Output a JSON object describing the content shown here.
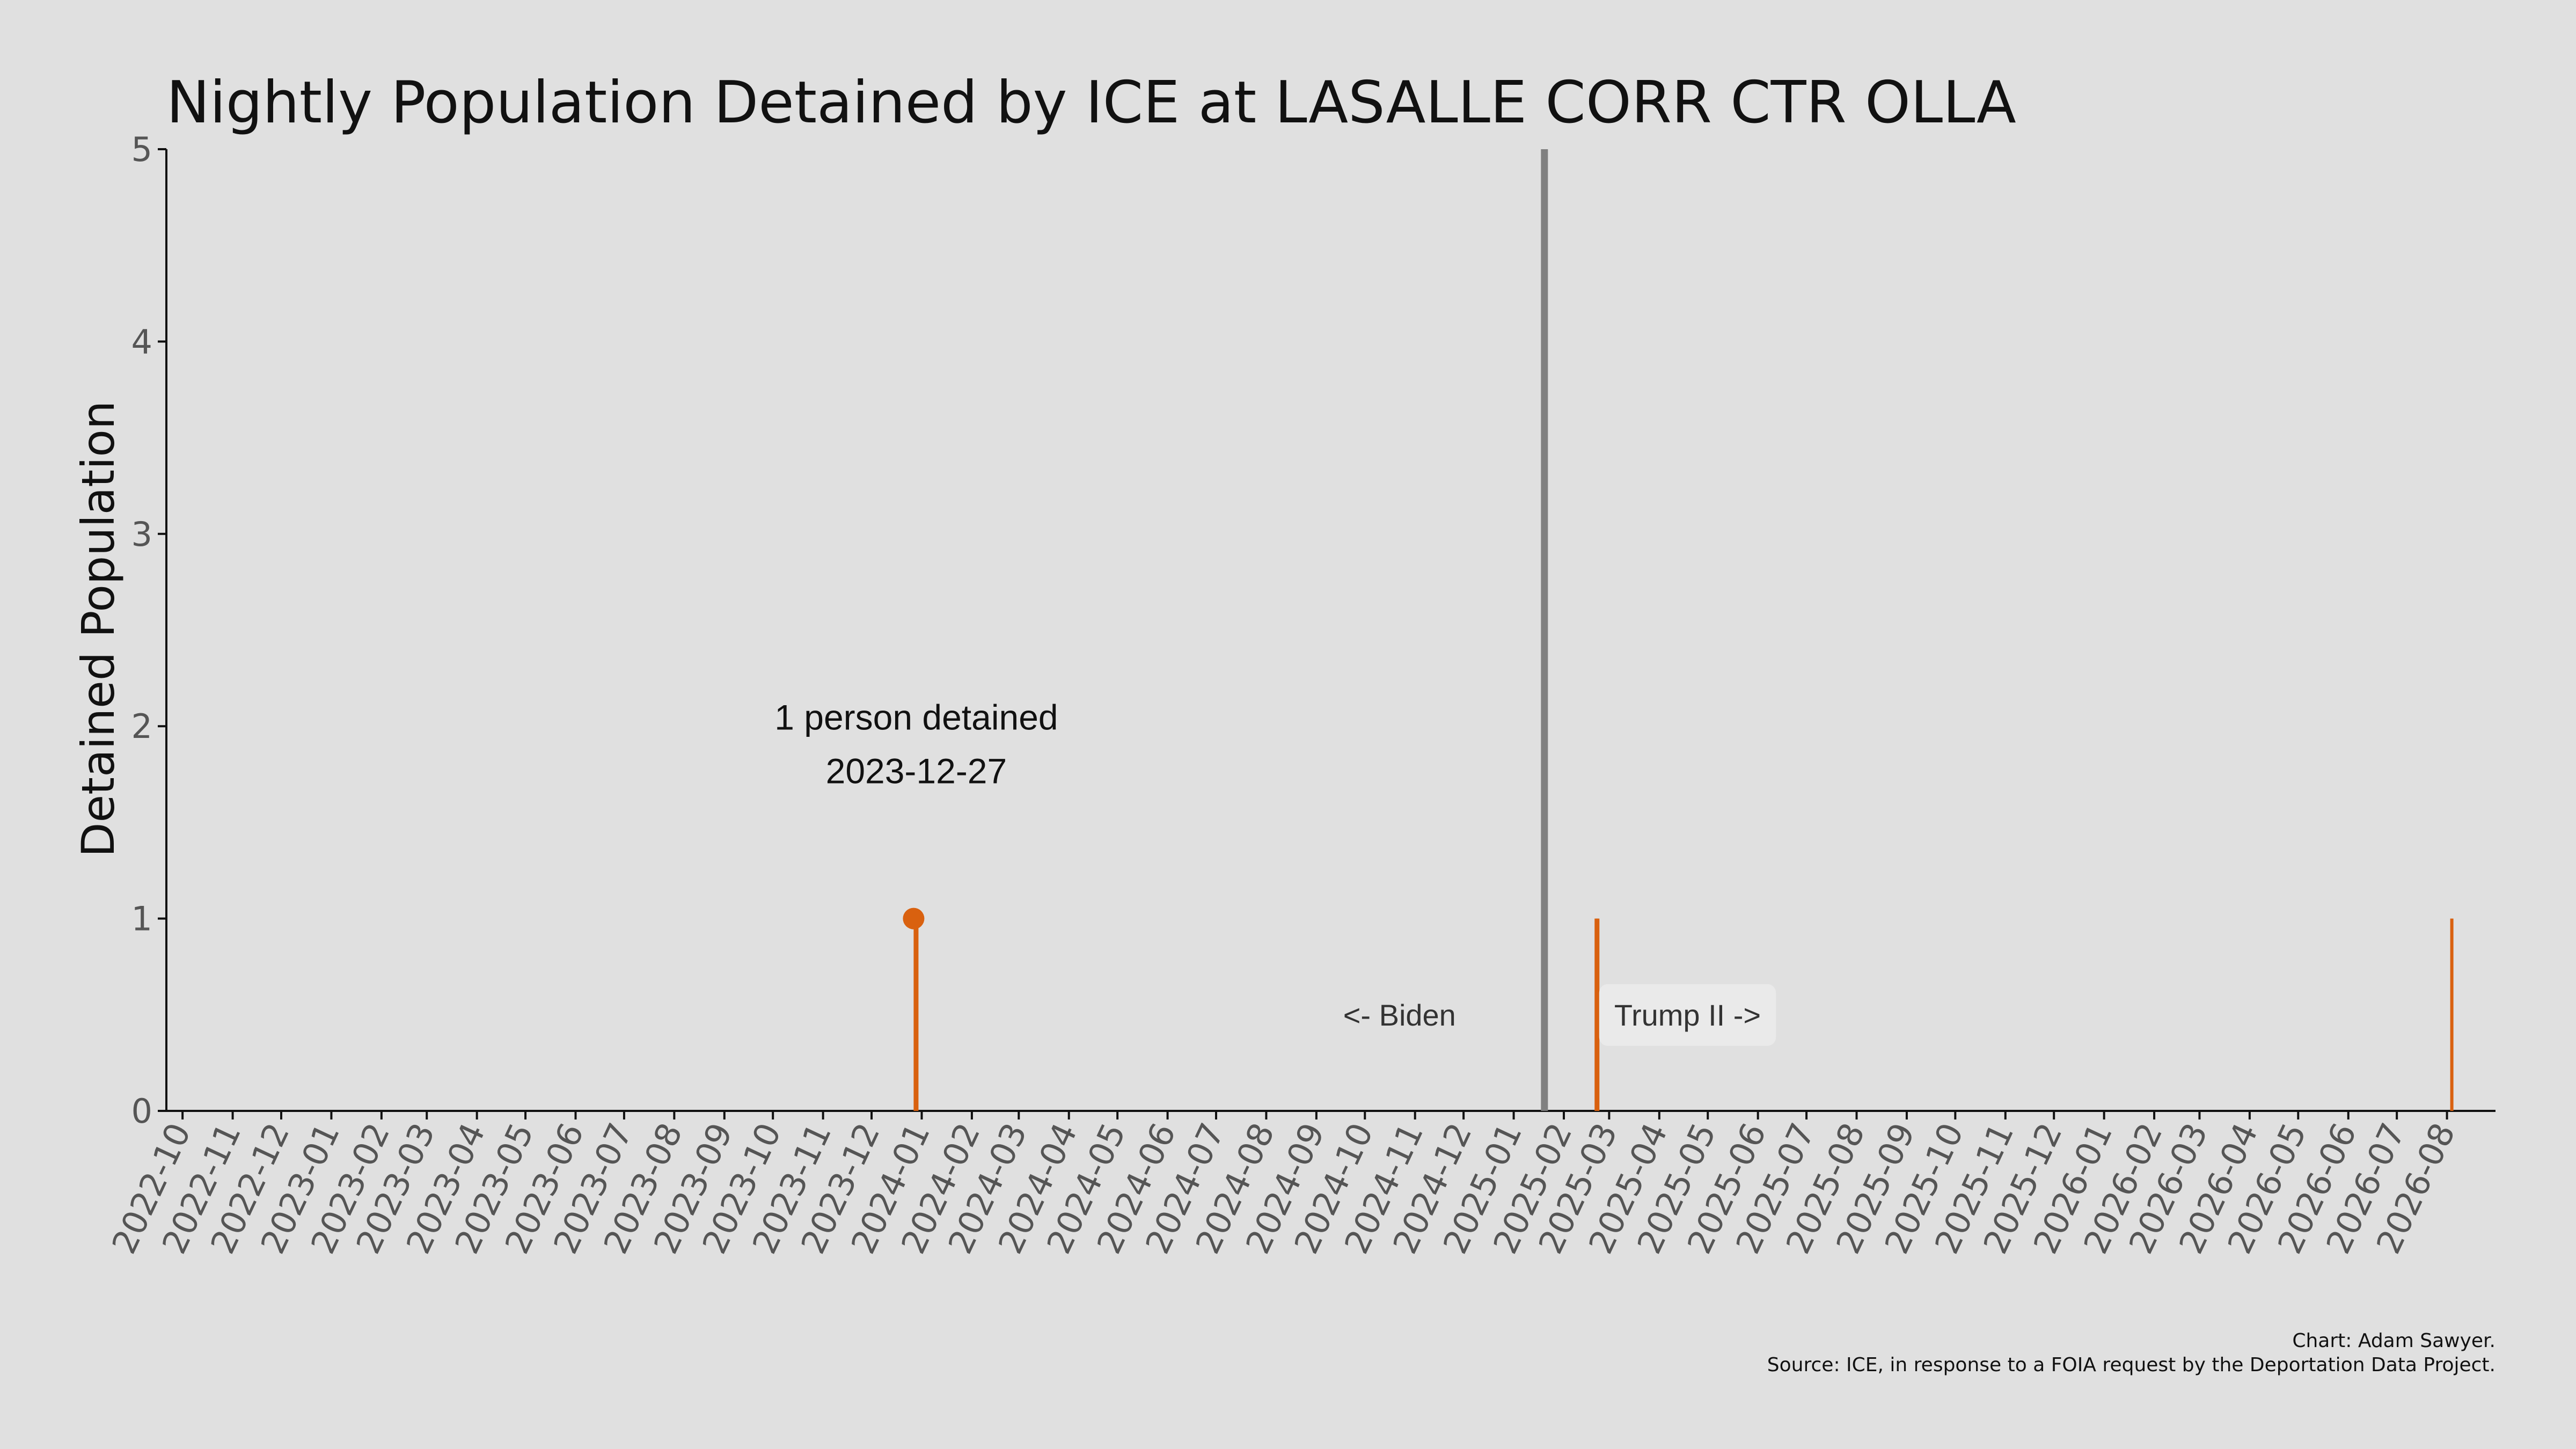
{
  "chart_data": {
    "type": "bar",
    "title": "Nightly Population Detained by ICE at LASALLE CORR CTR OLLA",
    "ylabel": "Detained Population",
    "xlabel": "",
    "ylim": [
      0,
      5
    ],
    "yticks": [
      0,
      1,
      2,
      3,
      4,
      5
    ],
    "xlim": [
      "2022-09-21",
      "2026-08-31"
    ],
    "xticks": [
      "2022-10",
      "2022-11",
      "2022-12",
      "2023-01",
      "2023-02",
      "2023-03",
      "2023-04",
      "2023-05",
      "2023-06",
      "2023-07",
      "2023-08",
      "2023-09",
      "2023-10",
      "2023-11",
      "2023-12",
      "2024-01",
      "2024-02",
      "2024-03",
      "2024-04",
      "2024-05",
      "2024-06",
      "2024-07",
      "2024-08",
      "2024-09",
      "2024-10",
      "2024-11",
      "2024-12",
      "2025-01",
      "2025-02",
      "2025-03",
      "2025-04",
      "2025-05",
      "2025-06",
      "2025-07",
      "2025-08",
      "2025-09",
      "2025-10",
      "2025-11",
      "2025-12",
      "2026-01",
      "2026-02",
      "2026-03",
      "2026-04",
      "2026-05",
      "2026-06",
      "2026-07",
      "2026-08"
    ],
    "grid": false,
    "colors": {
      "bars": "#d9610f",
      "divider": "#808080",
      "background": "#e0e0e0"
    },
    "points": [
      {
        "date": "2023-12-27",
        "value": 1
      },
      {
        "date": "2023-12-28",
        "value": 1
      },
      {
        "date": "2025-02-20",
        "value": 1
      },
      {
        "date": "2025-02-21",
        "value": 1
      },
      {
        "date": "2026-08-03",
        "value": 1
      }
    ],
    "highlight": {
      "date": "2023-12-27",
      "value": 1,
      "label_line1": "1 person detained",
      "label_line2": "2023-12-27"
    },
    "divider_date": "2025-01-20",
    "annotations": {
      "left": "<- Biden",
      "right": "Trump II ->"
    },
    "credit": "Chart: Adam Sawyer.",
    "source": "Source: ICE, in response to a FOIA request by the Deportation Data Project."
  }
}
